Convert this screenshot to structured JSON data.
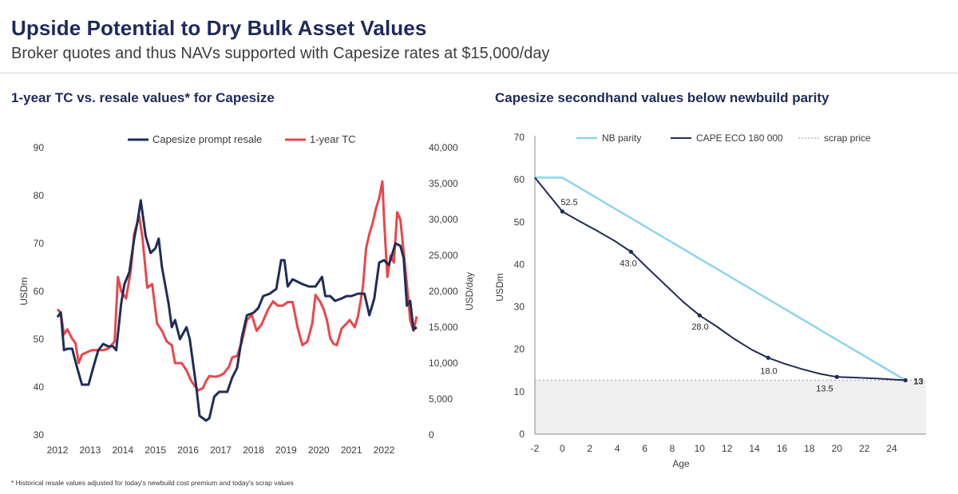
{
  "header": {
    "title": "Upside Potential to Dry Bulk Asset Values",
    "subtitle": "Broker quotes and thus NAVs supported with Capesize rates at $15,000/day"
  },
  "footnote": "* Historical resale values adjusted for today's newbuild cost premium and today's scrap values",
  "colors": {
    "navy": "#1f2d56",
    "red": "#e8474a",
    "light_blue": "#8ed3ee",
    "scrap": "#b8b8b8",
    "shade": "#efefef"
  },
  "chart_data": [
    {
      "type": "line",
      "title": "1-year TC vs. resale values* for Capesize",
      "ylabel": "USDm",
      "y2label": "USD/day",
      "xlim": [
        2012,
        2023
      ],
      "ylim": [
        30,
        90
      ],
      "y2lim": [
        0,
        40000
      ],
      "x_ticks": [
        "2012",
        "2013",
        "2014",
        "2015",
        "2016",
        "2017",
        "2018",
        "2019",
        "2020",
        "2021",
        "2022"
      ],
      "y_ticks": [
        "30",
        "40",
        "50",
        "60",
        "70",
        "80",
        "90"
      ],
      "y2_ticks": [
        "0",
        "5,000",
        "10,000",
        "15,000",
        "20,000",
        "25,000",
        "30,000",
        "35,000",
        "40,000"
      ],
      "legend_position": "top",
      "grid": false,
      "series": [
        {
          "name": "Capesize prompt resale",
          "axis": "left",
          "color": "#1f2d56",
          "points": [
            [
              2012.0,
              54.6
            ],
            [
              2012.1,
              55.6
            ],
            [
              2012.2,
              47.7
            ],
            [
              2012.3,
              48.0
            ],
            [
              2012.45,
              48.0
            ],
            [
              2012.6,
              44.1
            ],
            [
              2012.75,
              40.5
            ],
            [
              2012.95,
              40.5
            ],
            [
              2013.1,
              44.2
            ],
            [
              2013.25,
              47.7
            ],
            [
              2013.4,
              49.0
            ],
            [
              2013.55,
              48.5
            ],
            [
              2013.7,
              48.5
            ],
            [
              2013.8,
              47.7
            ],
            [
              2013.95,
              57.5
            ],
            [
              2014.05,
              61.5
            ],
            [
              2014.2,
              64.0
            ],
            [
              2014.35,
              71.0
            ],
            [
              2014.45,
              74.5
            ],
            [
              2014.55,
              79.0
            ],
            [
              2014.7,
              71.5
            ],
            [
              2014.85,
              68.0
            ],
            [
              2015.0,
              69.0
            ],
            [
              2015.1,
              71.0
            ],
            [
              2015.2,
              65.0
            ],
            [
              2015.4,
              57.5
            ],
            [
              2015.5,
              52.5
            ],
            [
              2015.6,
              54.0
            ],
            [
              2015.75,
              50.0
            ],
            [
              2015.95,
              52.5
            ],
            [
              2016.05,
              50.0
            ],
            [
              2016.15,
              45.0
            ],
            [
              2016.25,
              40.0
            ],
            [
              2016.35,
              34.0
            ],
            [
              2016.45,
              33.5
            ],
            [
              2016.55,
              33.0
            ],
            [
              2016.65,
              33.5
            ],
            [
              2016.8,
              38.0
            ],
            [
              2016.95,
              39.0
            ],
            [
              2017.2,
              39.0
            ],
            [
              2017.35,
              42.0
            ],
            [
              2017.5,
              44.0
            ],
            [
              2017.65,
              50.5
            ],
            [
              2017.8,
              55.0
            ],
            [
              2018.0,
              55.5
            ],
            [
              2018.15,
              56.5
            ],
            [
              2018.3,
              59.0
            ],
            [
              2018.5,
              59.5
            ],
            [
              2018.7,
              60.5
            ],
            [
              2018.85,
              66.5
            ],
            [
              2018.95,
              66.5
            ],
            [
              2019.05,
              61.0
            ],
            [
              2019.2,
              62.5
            ],
            [
              2019.35,
              62.0
            ],
            [
              2019.5,
              61.5
            ],
            [
              2019.7,
              61.0
            ],
            [
              2019.9,
              61.0
            ],
            [
              2020.1,
              63.0
            ],
            [
              2020.2,
              59.0
            ],
            [
              2020.35,
              59.0
            ],
            [
              2020.5,
              58.0
            ],
            [
              2020.7,
              58.5
            ],
            [
              2020.85,
              59.0
            ],
            [
              2021.0,
              59.0
            ],
            [
              2021.2,
              59.5
            ],
            [
              2021.4,
              59.5
            ],
            [
              2021.55,
              55.0
            ],
            [
              2021.7,
              58.5
            ],
            [
              2021.85,
              66.0
            ],
            [
              2022.0,
              66.5
            ],
            [
              2022.15,
              65.5
            ],
            [
              2022.35,
              70.0
            ],
            [
              2022.5,
              69.5
            ],
            [
              2022.6,
              67.0
            ],
            [
              2022.7,
              57.0
            ],
            [
              2022.8,
              58.0
            ],
            [
              2022.9,
              52.0
            ],
            [
              2023.0,
              52.5
            ]
          ]
        },
        {
          "name": "1-year TC",
          "axis": "right",
          "color": "#e8474a",
          "points": [
            [
              2012.0,
              17500
            ],
            [
              2012.1,
              17000
            ],
            [
              2012.2,
              14000
            ],
            [
              2012.3,
              14700
            ],
            [
              2012.45,
              13400
            ],
            [
              2012.55,
              12800
            ],
            [
              2012.65,
              10000
            ],
            [
              2012.75,
              11200
            ],
            [
              2012.9,
              11500
            ],
            [
              2013.05,
              11800
            ],
            [
              2013.2,
              11800
            ],
            [
              2013.4,
              11800
            ],
            [
              2013.55,
              12000
            ],
            [
              2013.75,
              13000
            ],
            [
              2013.85,
              22000
            ],
            [
              2013.95,
              20000
            ],
            [
              2014.1,
              19000
            ],
            [
              2014.25,
              23000
            ],
            [
              2014.35,
              28000
            ],
            [
              2014.5,
              30500
            ],
            [
              2014.6,
              27500
            ],
            [
              2014.75,
              20500
            ],
            [
              2014.9,
              21000
            ],
            [
              2015.05,
              15500
            ],
            [
              2015.2,
              14500
            ],
            [
              2015.35,
              13000
            ],
            [
              2015.5,
              12500
            ],
            [
              2015.6,
              10000
            ],
            [
              2015.8,
              10000
            ],
            [
              2015.95,
              9000
            ],
            [
              2016.1,
              7500
            ],
            [
              2016.3,
              6200
            ],
            [
              2016.45,
              6500
            ],
            [
              2016.55,
              7500
            ],
            [
              2016.65,
              8200
            ],
            [
              2016.85,
              8100
            ],
            [
              2017.0,
              8300
            ],
            [
              2017.1,
              8600
            ],
            [
              2017.25,
              9500
            ],
            [
              2017.35,
              10800
            ],
            [
              2017.5,
              11000
            ],
            [
              2017.65,
              13000
            ],
            [
              2017.8,
              16000
            ],
            [
              2017.95,
              16700
            ],
            [
              2018.1,
              14500
            ],
            [
              2018.25,
              15400
            ],
            [
              2018.45,
              17500
            ],
            [
              2018.6,
              18600
            ],
            [
              2018.75,
              18000
            ],
            [
              2018.9,
              18000
            ],
            [
              2019.05,
              18500
            ],
            [
              2019.2,
              18500
            ],
            [
              2019.35,
              15000
            ],
            [
              2019.5,
              12500
            ],
            [
              2019.65,
              13000
            ],
            [
              2019.8,
              15500
            ],
            [
              2019.9,
              19500
            ],
            [
              2020.05,
              18500
            ],
            [
              2020.15,
              17500
            ],
            [
              2020.25,
              16000
            ],
            [
              2020.35,
              13500
            ],
            [
              2020.45,
              12700
            ],
            [
              2020.55,
              12500
            ],
            [
              2020.7,
              14800
            ],
            [
              2020.85,
              15500
            ],
            [
              2020.95,
              16000
            ],
            [
              2021.1,
              15000
            ],
            [
              2021.2,
              16500
            ],
            [
              2021.35,
              20500
            ],
            [
              2021.45,
              26000
            ],
            [
              2021.55,
              28000
            ],
            [
              2021.65,
              29500
            ],
            [
              2021.75,
              31500
            ],
            [
              2021.85,
              33000
            ],
            [
              2021.95,
              35300
            ],
            [
              2022.0,
              30000
            ],
            [
              2022.1,
              22000
            ],
            [
              2022.2,
              25000
            ],
            [
              2022.3,
              24000
            ],
            [
              2022.4,
              31000
            ],
            [
              2022.5,
              30000
            ],
            [
              2022.6,
              25500
            ],
            [
              2022.7,
              21000
            ],
            [
              2022.8,
              16000
            ],
            [
              2022.9,
              14500
            ],
            [
              2023.0,
              16500
            ]
          ]
        }
      ]
    },
    {
      "type": "line",
      "title": "Capesize secondhand values below newbuild parity",
      "xlabel": "Age",
      "ylabel": "USDm",
      "xlim": [
        -2,
        26.5
      ],
      "ylim": [
        0,
        70
      ],
      "x_ticks": [
        "-2",
        "0",
        "2",
        "4",
        "6",
        "8",
        "10",
        "12",
        "14",
        "16",
        "18",
        "20",
        "22",
        "24"
      ],
      "y_ticks": [
        "0",
        "10",
        "20",
        "30",
        "40",
        "50",
        "60",
        "70"
      ],
      "legend_position": "top",
      "grid": false,
      "series": [
        {
          "name": "NB parity",
          "color": "#8ed3ee",
          "points": [
            [
              -2,
              60.5
            ],
            [
              0,
              60.5
            ],
            [
              25,
              12.7
            ]
          ]
        },
        {
          "name": "CAPE ECO 180 000",
          "color": "#1f2d56",
          "points": [
            [
              -2,
              60.5
            ],
            [
              0,
              52.5
            ],
            [
              5,
              43.0
            ],
            [
              10,
              28.0
            ],
            [
              15,
              18.0
            ],
            [
              20,
              13.5
            ],
            [
              25,
              12.7
            ]
          ],
          "labels": [
            {
              "x": 0,
              "y": 52.5,
              "text": "52.5"
            },
            {
              "x": 5,
              "y": 43.0,
              "text": "43.0"
            },
            {
              "x": 10,
              "y": 28.0,
              "text": "28.0"
            },
            {
              "x": 15,
              "y": 18.0,
              "text": "18.0"
            },
            {
              "x": 20,
              "y": 13.5,
              "text": "13.5"
            },
            {
              "x": 25,
              "y": 12.7,
              "text": "13"
            }
          ]
        },
        {
          "name": "scrap price",
          "color": "#b8b8b8",
          "value": 12.7,
          "style": "dotted"
        }
      ]
    }
  ]
}
